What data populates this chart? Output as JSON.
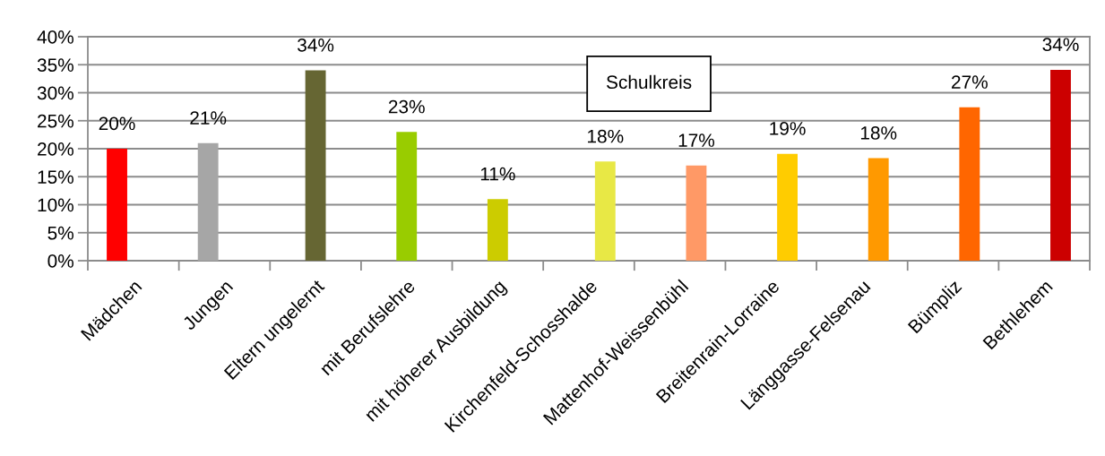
{
  "chart_data": {
    "type": "bar",
    "categories": [
      "Mädchen",
      "Jungen",
      "Eltern ungelernt",
      "mit Berufslehre",
      "mit höherer Ausbildung",
      "Kirchenfeld-Schosshalde",
      "Mattenhof-Weissenbühl",
      "Breitenrain-Lorraine",
      "Länggasse-Felsenau",
      "Bümpliz",
      "Bethlehem"
    ],
    "series": [
      {
        "values": [
          20,
          21,
          null,
          null,
          null,
          null,
          null,
          null,
          null,
          null,
          null
        ],
        "colors": [
          "#ff0000",
          "#a6a6a6",
          null,
          null,
          null,
          null,
          null,
          null,
          null,
          null,
          null
        ],
        "value_labels": [
          "20%",
          "21%",
          null,
          null,
          null,
          null,
          null,
          null,
          null,
          null,
          null
        ]
      },
      {
        "values": [
          null,
          null,
          34,
          23,
          11,
          null,
          null,
          null,
          null,
          null,
          null
        ],
        "colors": [
          null,
          null,
          "#666633",
          "#99cc00",
          "#cccc00",
          null,
          null,
          null,
          null,
          null,
          null
        ],
        "value_labels": [
          null,
          null,
          "34%",
          "23%",
          "11%",
          null,
          null,
          null,
          null,
          null,
          null
        ]
      },
      {
        "values": [
          null,
          null,
          null,
          null,
          null,
          17.7,
          17.0,
          19.1,
          18.3,
          27.4,
          34.1
        ],
        "colors": [
          null,
          null,
          null,
          null,
          null,
          "#e8e845",
          "#ff9966",
          "#ffcc00",
          "#ff9900",
          "#ff6600",
          "#cc0000"
        ],
        "value_labels": [
          null,
          null,
          null,
          null,
          null,
          "18%",
          "17%",
          "19%",
          "18%",
          "27%",
          "34%"
        ]
      }
    ],
    "ylim": [
      0,
      40
    ],
    "yticks": [
      {
        "value": 0,
        "label": "0%"
      },
      {
        "value": 5,
        "label": "5%"
      },
      {
        "value": 10,
        "label": "10%"
      },
      {
        "value": 15,
        "label": "15%"
      },
      {
        "value": 20,
        "label": "20%"
      },
      {
        "value": 25,
        "label": "25%"
      },
      {
        "value": 30,
        "label": "30%"
      },
      {
        "value": 35,
        "label": "35%"
      },
      {
        "value": 40,
        "label": "40%"
      }
    ],
    "grid": "y",
    "annotations": [
      "Schulkreis"
    ]
  }
}
